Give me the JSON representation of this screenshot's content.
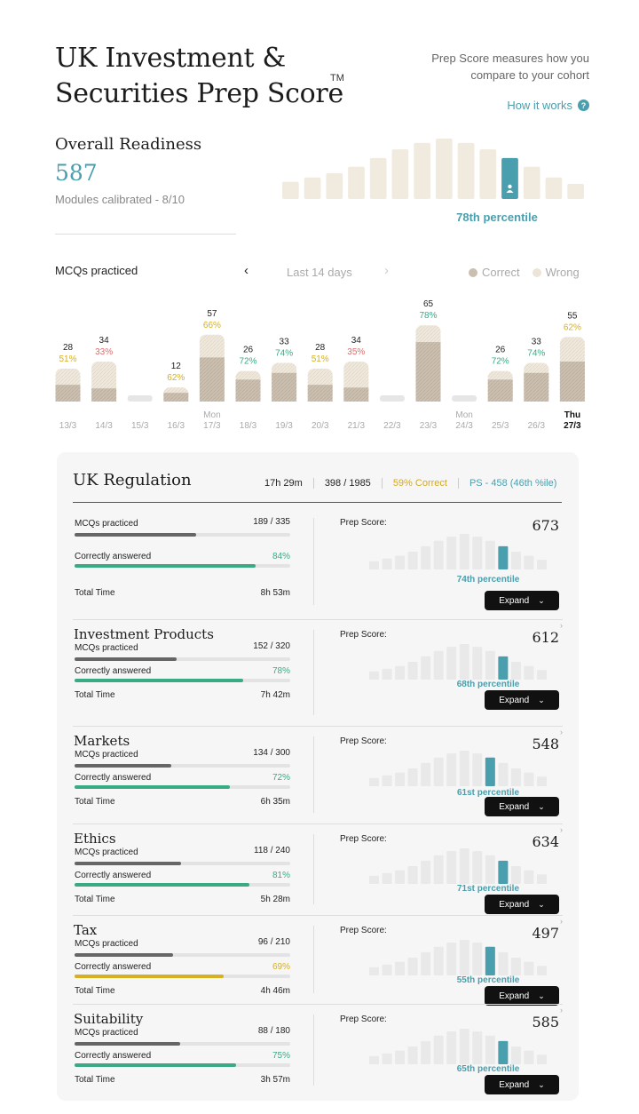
{
  "header": {
    "title": "UK Investment & Securities Prep Score",
    "trademark": "TM",
    "tagline": "Prep Score measures how you compare to your cohort",
    "how_it_works": "How it works",
    "help_icon": "?"
  },
  "overall": {
    "label": "Overall Readiness",
    "score": "587",
    "modules": "Modules calibrated - 8/10",
    "percentile_label": "78th percentile",
    "distribution": [
      8,
      10,
      12,
      15,
      19,
      23,
      26,
      28,
      26,
      23,
      19,
      15,
      10,
      7
    ],
    "user_bin_index": 10
  },
  "mcq": {
    "title": "MCQs practiced",
    "range_label": "Last 14 days",
    "legend_correct": "Correct",
    "legend_wrong": "Wrong",
    "colors": {
      "correct": "#cbbfb0",
      "wrong": "#ece4d6",
      "empty": "#e6e6e6",
      "green": "#3aaa85",
      "amber": "#d6b022",
      "red": "#e16a6a"
    },
    "chart_data": {
      "type": "bar",
      "title": "MCQs practiced",
      "categories": [
        {
          "day": "",
          "date": "13/3"
        },
        {
          "day": "",
          "date": "14/3"
        },
        {
          "day": "",
          "date": "15/3"
        },
        {
          "day": "",
          "date": "16/3"
        },
        {
          "day": "Mon",
          "date": "17/3"
        },
        {
          "day": "",
          "date": "18/3"
        },
        {
          "day": "",
          "date": "19/3"
        },
        {
          "day": "",
          "date": "20/3"
        },
        {
          "day": "",
          "date": "21/3"
        },
        {
          "day": "",
          "date": "22/3"
        },
        {
          "day": "",
          "date": "23/3"
        },
        {
          "day": "Mon",
          "date": "24/3"
        },
        {
          "day": "",
          "date": "25/3"
        },
        {
          "day": "",
          "date": "26/3"
        },
        {
          "day": "Thu",
          "date": "27/3"
        }
      ],
      "totals": [
        28,
        34,
        0,
        12,
        57,
        26,
        33,
        28,
        34,
        0,
        65,
        0,
        26,
        33,
        55
      ],
      "percent_correct": [
        51,
        33,
        null,
        62,
        66,
        72,
        74,
        51,
        35,
        null,
        78,
        null,
        72,
        74,
        62
      ],
      "percent_labels": [
        "51%",
        "33%",
        "",
        "62%",
        "66%",
        "72%",
        "74%",
        "51%",
        "35%",
        "",
        "78%",
        "",
        "72%",
        "74%",
        "62%"
      ],
      "highlight_index": 14,
      "legend": [
        "Correct",
        "Wrong"
      ],
      "legend_position": "top-right"
    }
  },
  "modules": {
    "title": "UK Regulation",
    "summary": {
      "time": "17h 29m",
      "questions": "398 / 1985",
      "correct": "59% Correct",
      "prep_score": "PS - 458 (46th %ile)"
    },
    "labels": {
      "mcqs": "MCQs practiced",
      "correct": "Correctly answered",
      "time": "Total Time",
      "prep_score": "Prep Score:",
      "expand": "Expand"
    },
    "items": [
      {
        "name": "",
        "mcq": "189 / 335",
        "mcq_frac": 0.564,
        "correct": "84%",
        "correct_frac": 0.84,
        "correct_color": "#3aaa85",
        "time": "8h 53m",
        "ps": "673",
        "percentile": "74th percentile",
        "bin": 10
      },
      {
        "name": "Investment Products",
        "mcq": "152 / 320",
        "mcq_frac": 0.475,
        "correct": "78%",
        "correct_frac": 0.78,
        "correct_color": "#3aaa85",
        "time": "7h 42m",
        "ps": "612",
        "percentile": "68th percentile",
        "bin": 10
      },
      {
        "name": "Markets",
        "mcq": "134 / 300",
        "mcq_frac": 0.447,
        "correct": "72%",
        "correct_frac": 0.72,
        "correct_color": "#3aaa85",
        "time": "6h 35m",
        "ps": "548",
        "percentile": "61st percentile",
        "bin": 9
      },
      {
        "name": "Ethics",
        "mcq": "118 / 240",
        "mcq_frac": 0.492,
        "correct": "81%",
        "correct_frac": 0.81,
        "correct_color": "#3aaa85",
        "time": "5h 28m",
        "ps": "634",
        "percentile": "71st percentile",
        "bin": 10
      },
      {
        "name": "Tax",
        "mcq": "96 / 210",
        "mcq_frac": 0.457,
        "correct": "69%",
        "correct_frac": 0.69,
        "correct_color": "#d6b022",
        "time": "4h 46m",
        "ps": "497",
        "percentile": "55th percentile",
        "bin": 9
      },
      {
        "name": "Suitability",
        "mcq": "88 / 180",
        "mcq_frac": 0.489,
        "correct": "75%",
        "correct_frac": 0.75,
        "correct_color": "#3aaa85",
        "time": "3h 57m",
        "ps": "585",
        "percentile": "65th percentile",
        "bin": 10
      }
    ]
  },
  "colors": {
    "accent": "#4a9fae",
    "beige": "#f1ebdf"
  }
}
